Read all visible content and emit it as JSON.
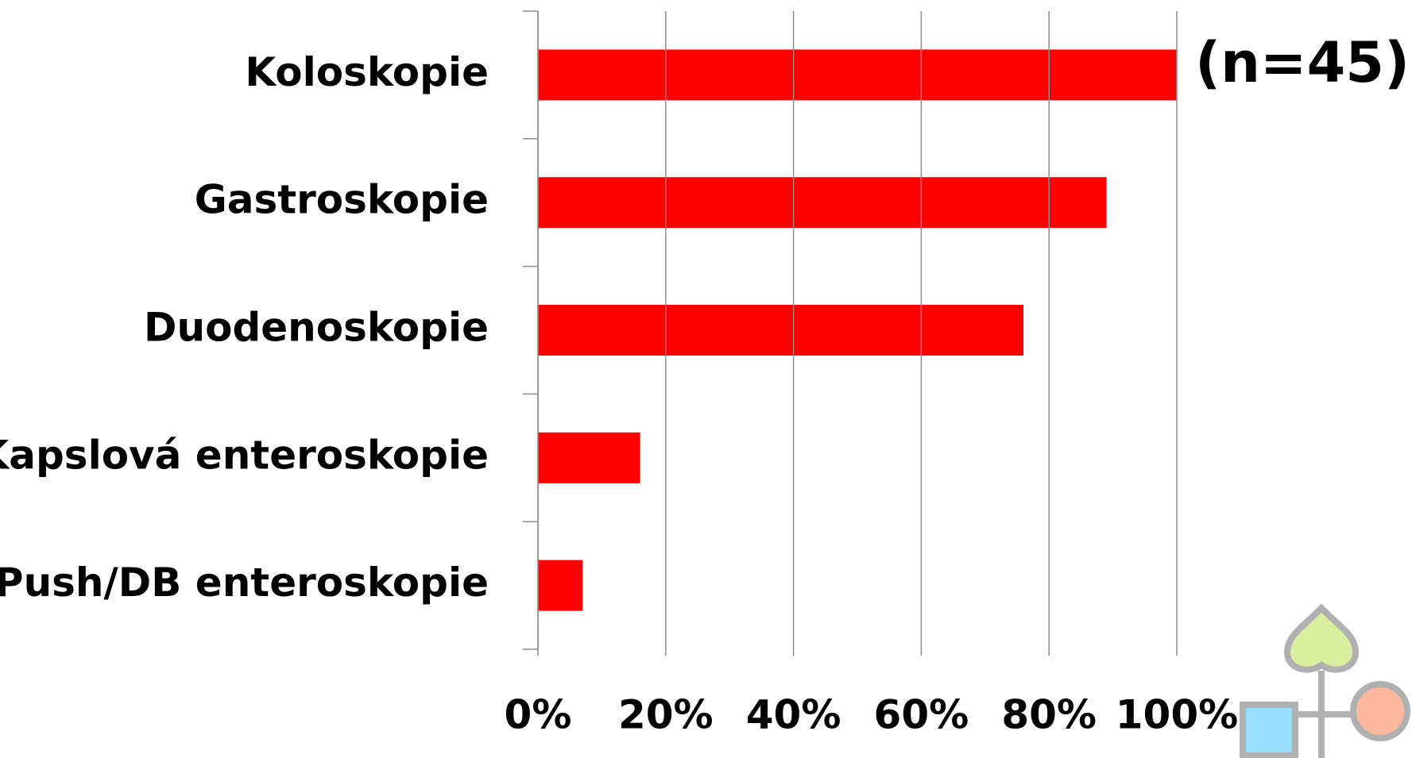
{
  "chart_data": {
    "type": "hbar",
    "annotation": "(n=45)",
    "categories": [
      "Koloskopie",
      "Gastroskopie",
      "Duodenoskopie",
      "Kapslová enteroskopie",
      "Push/DB enteroskopie"
    ],
    "values": [
      100,
      89,
      76,
      16,
      7
    ],
    "color": "#ff0000",
    "xlim": [
      0,
      100
    ],
    "xticks": [
      {
        "value": 0,
        "label": "0%"
      },
      {
        "value": 20,
        "label": "20%"
      },
      {
        "value": 40,
        "label": "40%"
      },
      {
        "value": 60,
        "label": "60%"
      },
      {
        "value": 80,
        "label": "80%"
      },
      {
        "value": 100,
        "label": "100%"
      }
    ],
    "grid": true
  }
}
